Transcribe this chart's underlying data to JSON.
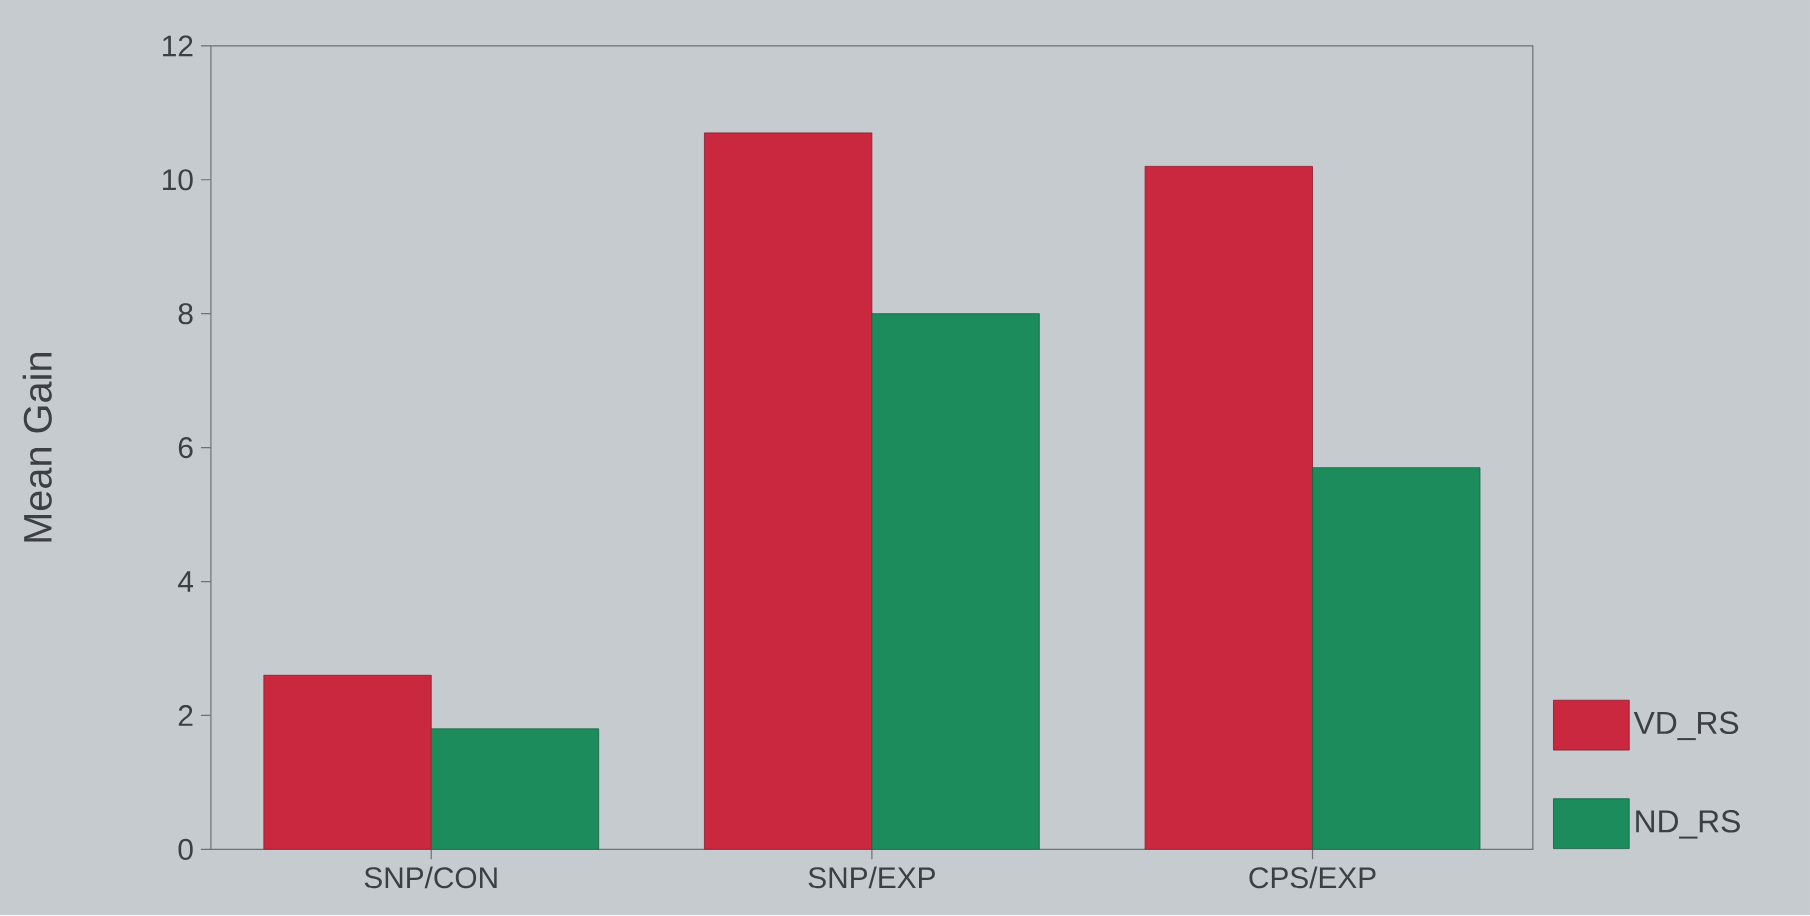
{
  "chart_data": {
    "type": "bar",
    "ylabel": "Mean Gain",
    "categories": [
      "SNP/CON",
      "SNP/EXP",
      "CPS/EXP"
    ],
    "series": [
      {
        "name": "VD_RS",
        "color": "#c9283e",
        "values": [
          2.6,
          10.7,
          10.2
        ]
      },
      {
        "name": "ND_RS",
        "color": "#1d8c5c",
        "values": [
          1.8,
          8.0,
          5.7
        ]
      }
    ],
    "ylim": [
      0,
      12
    ],
    "yticks": [
      0,
      2,
      4,
      6,
      8,
      10,
      12
    ],
    "grid": false,
    "legend": "bottom right"
  }
}
